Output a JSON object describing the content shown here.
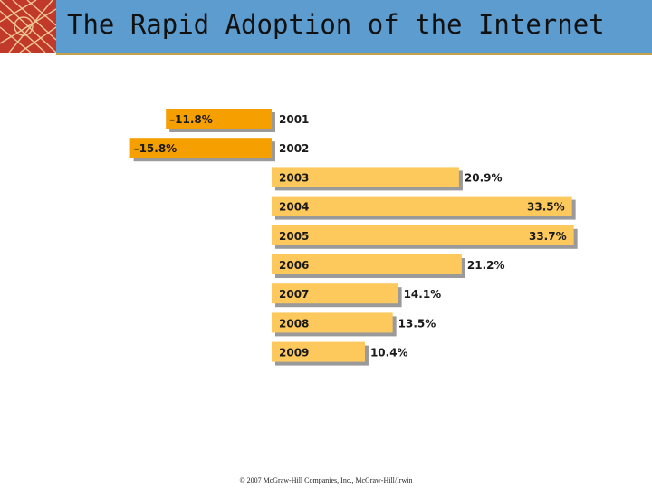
{
  "header": {
    "title": "The Rapid Adoption of the Internet",
    "background_color": "#5d9ccf",
    "logo_icon": "sunburst-logo-icon"
  },
  "chart_data": {
    "type": "bar",
    "orientation": "horizontal",
    "categories": [
      "2001",
      "2002",
      "2003",
      "2004",
      "2005",
      "2006",
      "2007",
      "2008",
      "2009"
    ],
    "values": [
      -11.8,
      -15.8,
      20.9,
      33.5,
      33.7,
      21.2,
      14.1,
      13.5,
      10.4
    ],
    "value_labels": [
      "–11.8%",
      "–15.8%",
      "20.9%",
      "33.5%",
      "33.7%",
      "21.2%",
      "14.1%",
      "13.5%",
      "10.4%"
    ],
    "title": "",
    "xlabel": "",
    "ylabel": "",
    "grid": false,
    "colors": {
      "positive": "#fdc85c",
      "negative": "#f5a000",
      "shadow": "#9a9a9a"
    }
  },
  "footer": {
    "copyright": "© 2007 McGraw-Hill Companies, Inc., McGraw-Hill/Irwin"
  }
}
